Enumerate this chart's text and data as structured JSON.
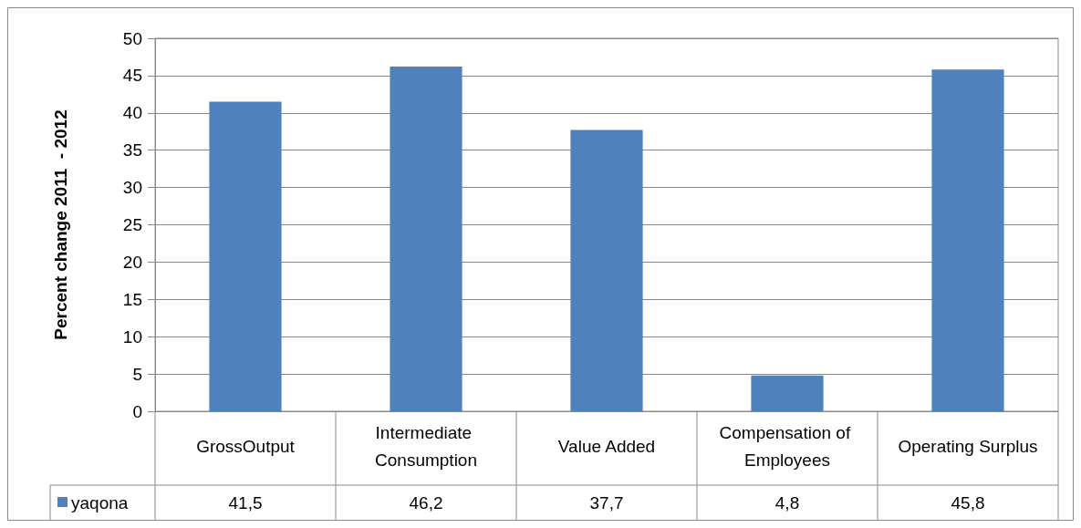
{
  "chart_data": {
    "type": "bar",
    "ylabel": "Percent change 2011  - 2012",
    "categories": [
      "GrossOutput",
      "Intermediate Consumption",
      "Value Added",
      "Compensation of Employees",
      "Operating Surplus"
    ],
    "series": [
      {
        "name": "yaqona",
        "color": "#4f81bd",
        "values": [
          41.5,
          46.2,
          37.7,
          4.8,
          45.8
        ],
        "value_labels": [
          "41,5",
          "46,2",
          "37,7",
          "4,8",
          "45,8"
        ]
      }
    ],
    "ylim": [
      0,
      50
    ],
    "yticks": [
      0,
      5,
      10,
      15,
      20,
      25,
      30,
      35,
      40,
      45,
      50
    ],
    "grid": "y",
    "legend": "bottom"
  }
}
